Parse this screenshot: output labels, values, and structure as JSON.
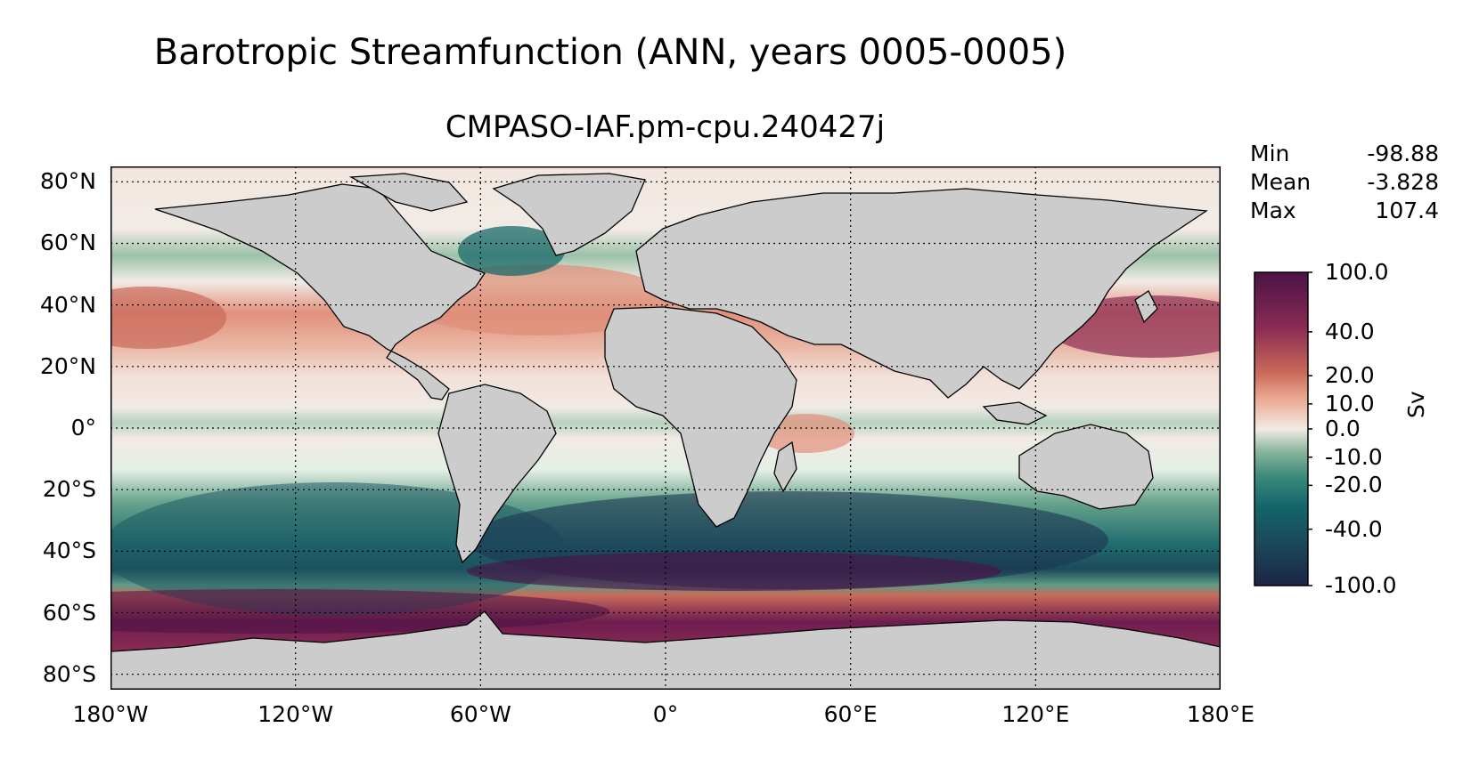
{
  "figure": {
    "suptitle": "Barotropic Streamfunction (ANN, years 0005-0005)",
    "subtitle": "CMPASO-IAF.pm-cpu.240427j"
  },
  "stats": [
    {
      "label": "Min",
      "value": "-98.88"
    },
    {
      "label": "Mean",
      "value": "-3.828"
    },
    {
      "label": "Max",
      "value": "107.4"
    }
  ],
  "axes": {
    "lat_labels": [
      "80°N",
      "60°N",
      "40°N",
      "20°N",
      "0°",
      "20°S",
      "40°S",
      "60°S",
      "80°S"
    ],
    "lat_values": [
      80,
      60,
      40,
      20,
      0,
      -20,
      -40,
      -60,
      -80
    ],
    "lon_labels": [
      "180°W",
      "120°W",
      "60°W",
      "0°",
      "60°E",
      "120°E",
      "180°E"
    ],
    "lon_values": [
      -180,
      -120,
      -60,
      0,
      60,
      120,
      180
    ]
  },
  "colorbar": {
    "units": "Sv",
    "tick_labels": [
      "100.0",
      "40.0",
      "20.0",
      "10.0",
      "0.0",
      "-10.0",
      "-20.0",
      "-40.0",
      "-100.0"
    ],
    "tick_values": [
      100,
      40,
      20,
      10,
      0,
      -10,
      -20,
      -40,
      -100
    ],
    "colors": [
      "#1c2546",
      "#1c4a5a",
      "#12656a",
      "#3d8a7b",
      "#8bb69e",
      "#f1ebe5",
      "#e9a68e",
      "#c96a5a",
      "#8c2c55",
      "#4a1246"
    ]
  },
  "colors": {
    "land": "#cccccc",
    "ocean_neutral": "#f3ede8"
  }
}
